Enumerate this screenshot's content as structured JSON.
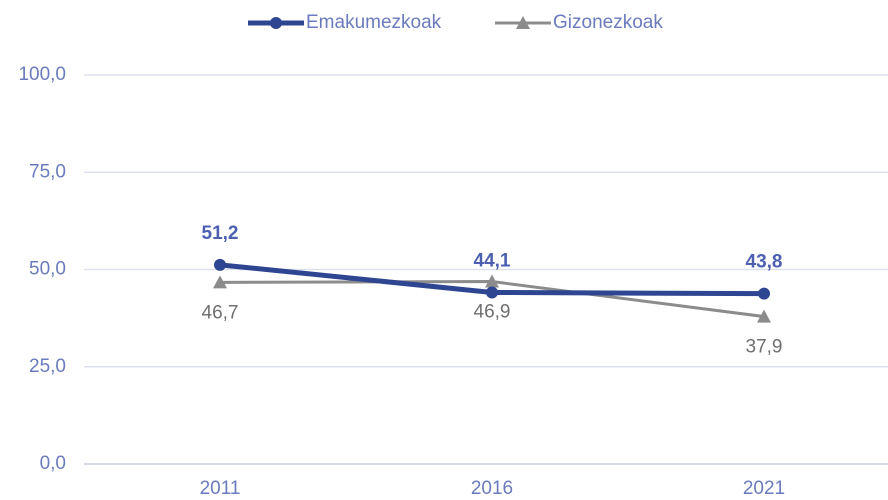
{
  "chart_data": {
    "type": "line",
    "categories": [
      "2011",
      "2016",
      "2021"
    ],
    "series": [
      {
        "name": "Emakumezkoak",
        "color": "#2e4591",
        "marker": "circle",
        "values": [
          51.2,
          44.1,
          43.8
        ],
        "value_labels": [
          "51,2",
          "44,1",
          "43,8"
        ]
      },
      {
        "name": "Gizonezkoak",
        "color": "#8c8c8c",
        "marker": "triangle",
        "values": [
          46.7,
          46.9,
          37.9
        ],
        "value_labels": [
          "46,7",
          "46,9",
          "37,9"
        ]
      }
    ],
    "ylim": [
      0,
      100
    ],
    "yticks": [
      {
        "value": 0,
        "label": "0,0"
      },
      {
        "value": 25,
        "label": "25,0"
      },
      {
        "value": 50,
        "label": "50,0"
      },
      {
        "value": 75,
        "label": "75,0"
      },
      {
        "value": 100,
        "label": "100,0"
      }
    ],
    "grid": true,
    "legend": "top"
  }
}
